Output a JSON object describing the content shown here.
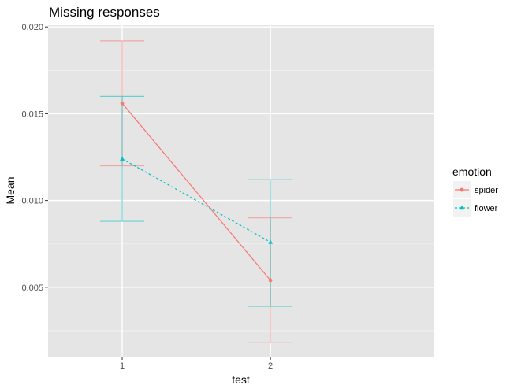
{
  "chart_data": {
    "type": "line",
    "title": "Missing responses",
    "xlabel": "test",
    "ylabel": "Mean",
    "categories": [
      "1",
      "2"
    ],
    "yticks": [
      "0.005",
      "0.010",
      "0.015",
      "0.020"
    ],
    "ytick_values": [
      0.005,
      0.01,
      0.015,
      0.02
    ],
    "ylim": [
      0.001,
      0.0201
    ],
    "grid": true,
    "panel_background": "#e5e5e5",
    "grid_color": "#ffffff",
    "legend": {
      "title": "emotion",
      "position": "right"
    },
    "series": [
      {
        "name": "spider",
        "color": "#f8766d",
        "marker": "circle",
        "line_style": "solid",
        "values": [
          0.0156,
          0.0054
        ],
        "error_low": [
          0.012,
          0.0018
        ],
        "error_high": [
          0.0192,
          0.009
        ]
      },
      {
        "name": "flower",
        "color": "#00bfc4",
        "marker": "triangle",
        "line_style": "dashed",
        "values": [
          0.0124,
          0.0076
        ],
        "error_low": [
          0.0088,
          0.0039
        ],
        "error_high": [
          0.016,
          0.0112
        ]
      }
    ]
  }
}
